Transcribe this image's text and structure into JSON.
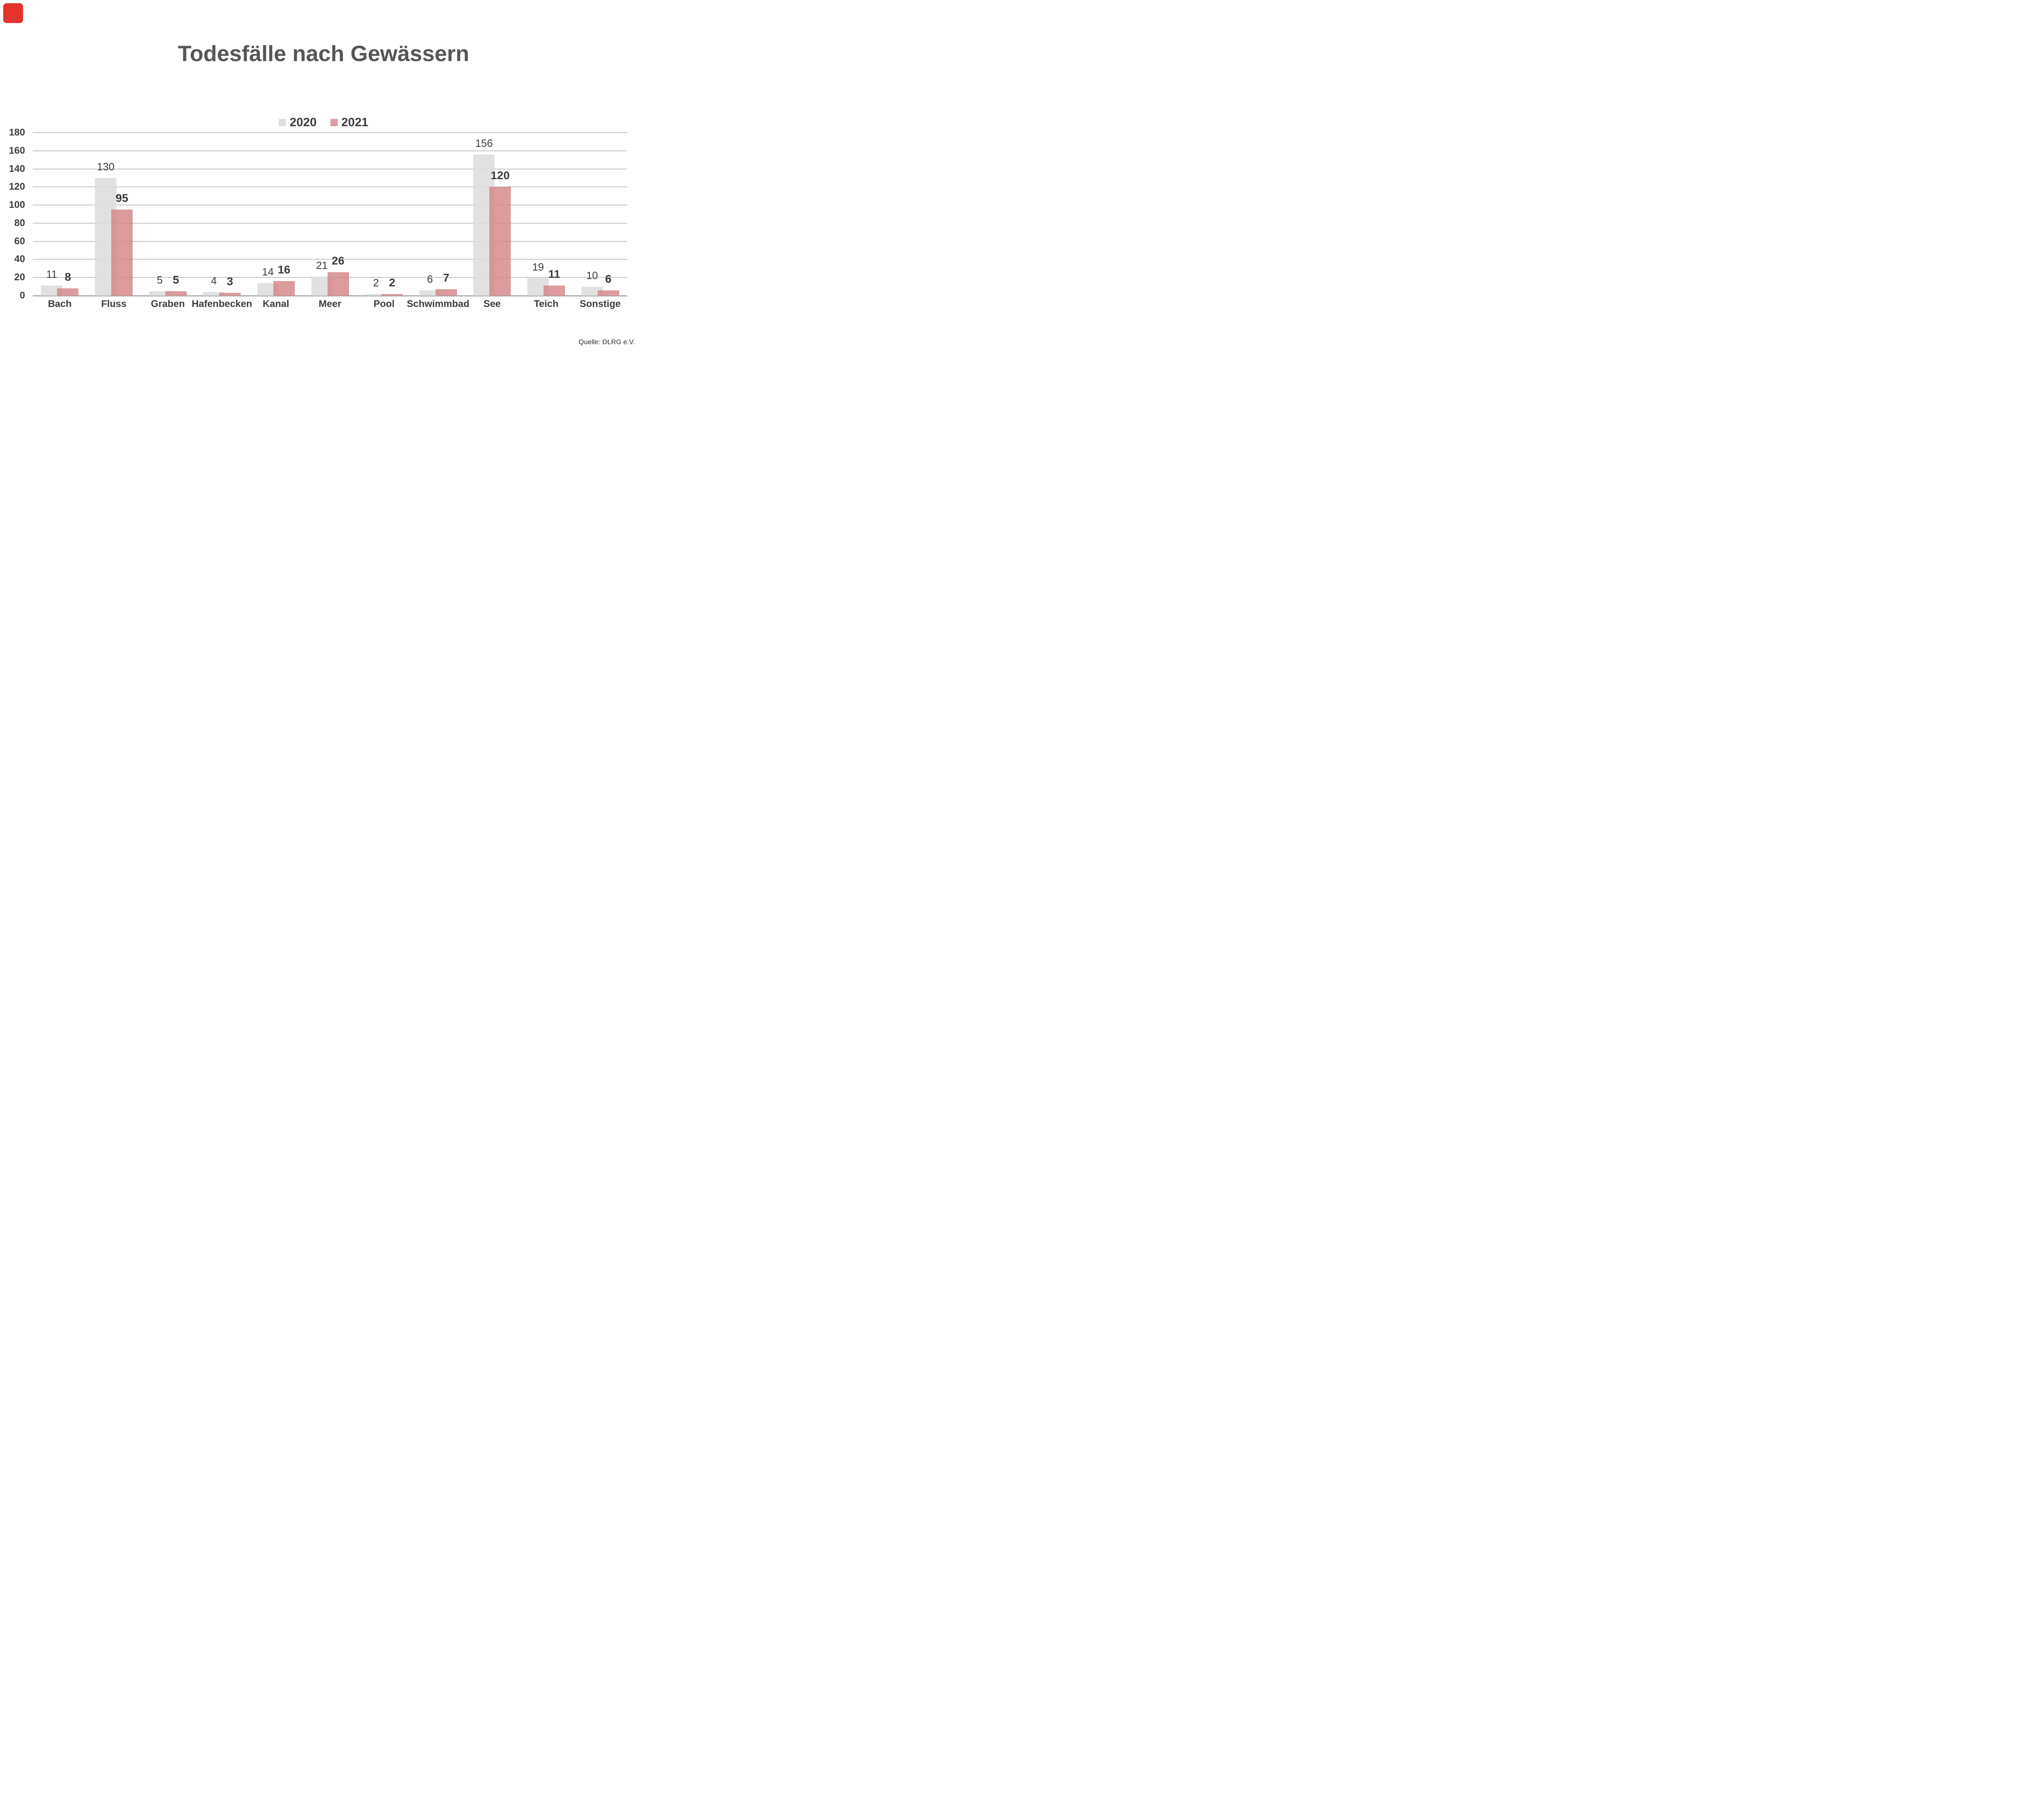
{
  "marker": {
    "color": "#e5332e"
  },
  "title": "Todesfälle nach Gewässern",
  "source": "Quelle: DLRG e.V.",
  "legend": {
    "items": [
      {
        "label": "2020",
        "color": "#dfdfdf"
      },
      {
        "label": "2021",
        "color": "#dd9c9e"
      }
    ]
  },
  "colors": {
    "bar_2020": "rgba(221,221,221,0.88)",
    "bar_2021": "rgba(211,130,132,0.80)",
    "gridline": "#c3c3c3",
    "baseline": "#adadad",
    "title_text": "#565656",
    "label_text": "#3d3d3d"
  },
  "chart_data": {
    "type": "bar",
    "title": "Todesfälle nach Gewässern",
    "categories": [
      "Bach",
      "Fluss",
      "Graben",
      "Hafenbecken",
      "Kanal",
      "Meer",
      "Pool",
      "Schwimmbad",
      "See",
      "Teich",
      "Sonstige"
    ],
    "series": [
      {
        "name": "2020",
        "values": [
          11,
          130,
          5,
          4,
          14,
          21,
          2,
          6,
          156,
          19,
          10
        ]
      },
      {
        "name": "2021",
        "values": [
          8,
          95,
          5,
          3,
          16,
          26,
          2,
          7,
          120,
          11,
          6
        ]
      }
    ],
    "xlabel": "",
    "ylabel": "",
    "ylim": [
      0,
      180
    ],
    "yticks": [
      0,
      20,
      40,
      60,
      80,
      100,
      120,
      140,
      160,
      180
    ],
    "grid": "horizontal",
    "legend_position": "top-center",
    "annotations": "data labels above each bar; 2021 labels bold"
  }
}
